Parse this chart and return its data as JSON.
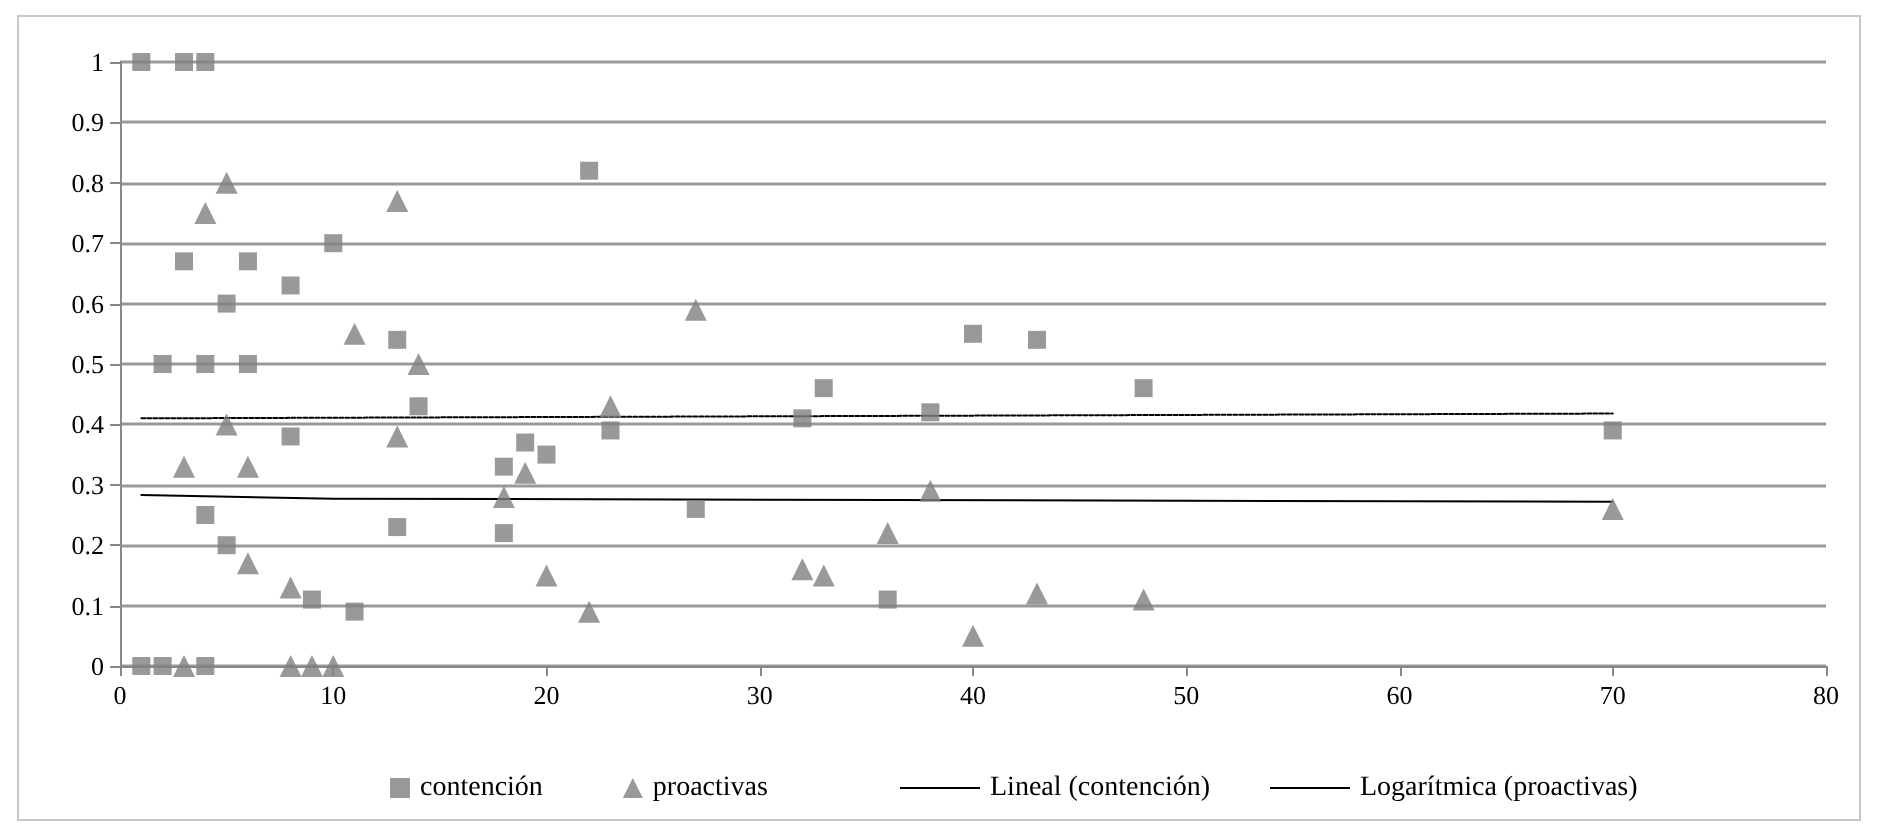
{
  "chart_data": {
    "type": "scatter",
    "xlim": [
      0,
      80
    ],
    "xticks": [
      0,
      10,
      20,
      30,
      40,
      50,
      60,
      70,
      80
    ],
    "ylim": [
      0,
      1
    ],
    "yticks": [
      0,
      0.1,
      0.2,
      0.3,
      0.4,
      0.5,
      0.6,
      0.7,
      0.8,
      0.9,
      1
    ],
    "grid": "y",
    "legend": "bottom",
    "series": [
      {
        "name": "contención",
        "marker": "square",
        "color": "#7f7f7f",
        "x": [
          1,
          3,
          4,
          3,
          6,
          8,
          10,
          5,
          2,
          4,
          6,
          13,
          14,
          8,
          4,
          5,
          13,
          9,
          11,
          18,
          19,
          20,
          18,
          22,
          23,
          1,
          2,
          4,
          27,
          32,
          33,
          36,
          38,
          40,
          43,
          48,
          70
        ],
        "values": [
          1,
          1,
          1,
          0.67,
          0.67,
          0.63,
          0.7,
          0.6,
          0.5,
          0.5,
          0.5,
          0.54,
          0.43,
          0.38,
          0.25,
          0.2,
          0.23,
          0.11,
          0.09,
          0.33,
          0.37,
          0.35,
          0.22,
          0.82,
          0.39,
          0,
          0,
          0,
          0.26,
          0.41,
          0.46,
          0.11,
          0.42,
          0.55,
          0.54,
          0.46,
          0.39
        ]
      },
      {
        "name": "proactivas",
        "marker": "triangle",
        "color": "#7f7f7f",
        "x": [
          5,
          4,
          3,
          5,
          6,
          6,
          8,
          11,
          13,
          14,
          13,
          18,
          19,
          20,
          22,
          23,
          3,
          8,
          9,
          10,
          27,
          32,
          33,
          36,
          38,
          40,
          43,
          48,
          70
        ],
        "values": [
          0.8,
          0.75,
          0.33,
          0.4,
          0.33,
          0.17,
          0.13,
          0.55,
          0.77,
          0.5,
          0.38,
          0.28,
          0.32,
          0.15,
          0.09,
          0.43,
          0,
          0,
          0,
          0,
          0.59,
          0.16,
          0.15,
          0.22,
          0.29,
          0.05,
          0.12,
          0.11,
          0.26
        ]
      },
      {
        "name": "Lineal (contención)",
        "type": "line",
        "marker": "none",
        "line_style": "dotted",
        "color": "#000000",
        "x": [
          1,
          70
        ],
        "values": [
          0.41,
          0.418
        ]
      },
      {
        "name": "Logarítmica (proactivas)",
        "type": "line",
        "marker": "none",
        "line_style": "solid",
        "color": "#000000",
        "x": [
          1,
          10,
          70
        ],
        "values": [
          0.283,
          0.277,
          0.272
        ]
      }
    ]
  }
}
